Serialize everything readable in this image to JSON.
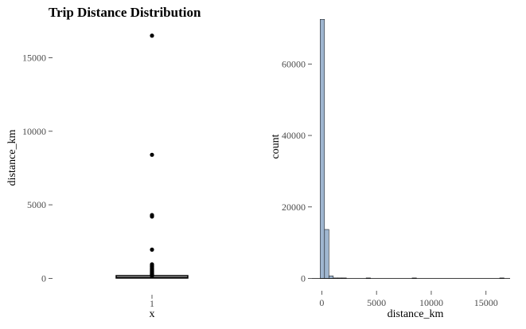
{
  "figure": {
    "title": "Trip Distance Distribution"
  },
  "chart_data": [
    {
      "type": "box",
      "xlabel": "x",
      "ylabel": "distance_km",
      "x_ticks": [
        "1"
      ],
      "y_ticks": [
        0,
        5000,
        10000,
        15000
      ],
      "ylim": [
        -900,
        17300
      ],
      "box": {
        "q1": 20,
        "median": 45,
        "q3": 90
      },
      "outliers": [
        16500,
        8400,
        4300,
        4250,
        4200,
        1950,
        950,
        880,
        800,
        720,
        650,
        580,
        520,
        470,
        420,
        380,
        340,
        300,
        260,
        230,
        200,
        180
      ],
      "colors": {
        "points": "#000000"
      }
    },
    {
      "type": "histogram",
      "xlabel": "distance_km",
      "ylabel": "count",
      "x_ticks": [
        0,
        5000,
        10000,
        15000
      ],
      "y_ticks": [
        0,
        20000,
        40000,
        60000
      ],
      "xlim": [
        -900,
        17200
      ],
      "ylim": [
        0,
        73000
      ],
      "bins": [
        {
          "x0": -150,
          "x1": 250,
          "count": 72500
        },
        {
          "x0": 250,
          "x1": 650,
          "count": 13700
        },
        {
          "x0": 650,
          "x1": 1050,
          "count": 700
        },
        {
          "x0": 1050,
          "x1": 1450,
          "count": 40
        },
        {
          "x0": 1450,
          "x1": 1850,
          "count": 15
        },
        {
          "x0": 1850,
          "x1": 2250,
          "count": 5
        },
        {
          "x0": 4050,
          "x1": 4450,
          "count": 4
        },
        {
          "x0": 8250,
          "x1": 8650,
          "count": 1
        },
        {
          "x0": 16250,
          "x1": 16650,
          "count": 1
        }
      ],
      "colors": {
        "fill": "#9fb6d0",
        "stroke": "#000000"
      }
    }
  ]
}
